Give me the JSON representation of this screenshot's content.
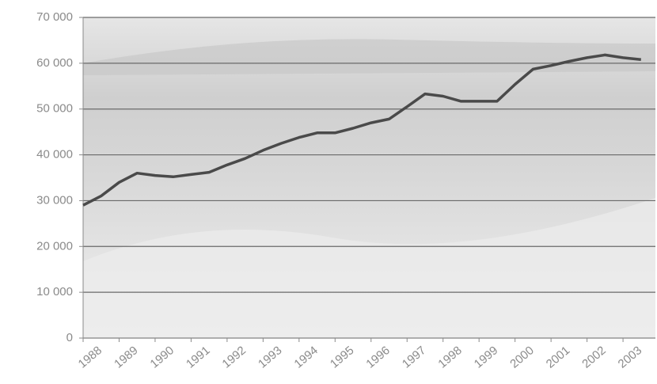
{
  "chart_data": {
    "type": "line",
    "x": [
      1988,
      1988.5,
      1989,
      1989.5,
      1990,
      1990.5,
      1991,
      1991.5,
      1992,
      1992.5,
      1993,
      1993.5,
      1994,
      1994.5,
      1995,
      1995.5,
      1996,
      1996.5,
      1997,
      1997.5,
      1998,
      1998.5,
      1999,
      1999.5,
      2000,
      2000.5,
      2001,
      2001.5,
      2002,
      2002.5,
      2003,
      2003.5
    ],
    "values": [
      29000,
      31000,
      34000,
      36000,
      35500,
      35200,
      35700,
      36200,
      37800,
      39200,
      41000,
      42500,
      43800,
      44800,
      44800,
      45800,
      47000,
      47800,
      50500,
      53300,
      52800,
      51700,
      51700,
      51700,
      55400,
      58700,
      59500,
      60400,
      61200,
      61800,
      61200,
      60800
    ],
    "color": "#4a4a4a",
    "xlim": [
      1988,
      2003.9
    ],
    "xticks": [
      1988,
      1989,
      1990,
      1991,
      1992,
      1993,
      1994,
      1995,
      1996,
      1997,
      1998,
      1999,
      2000,
      2001,
      2002,
      2003
    ],
    "ylim": [
      0,
      70000
    ],
    "yticks": [
      0,
      {
        "value": 10000,
        "label": "10 000"
      },
      {
        "value": 20000,
        "label": "20 000"
      },
      {
        "value": 30000,
        "label": "30 000"
      },
      {
        "value": 40000,
        "label": "40 000"
      },
      {
        "value": 50000,
        "label": "50 000"
      },
      {
        "value": 60000,
        "label": "60 000"
      },
      {
        "value": 70000,
        "label": "70 000"
      }
    ],
    "grid": true
  }
}
